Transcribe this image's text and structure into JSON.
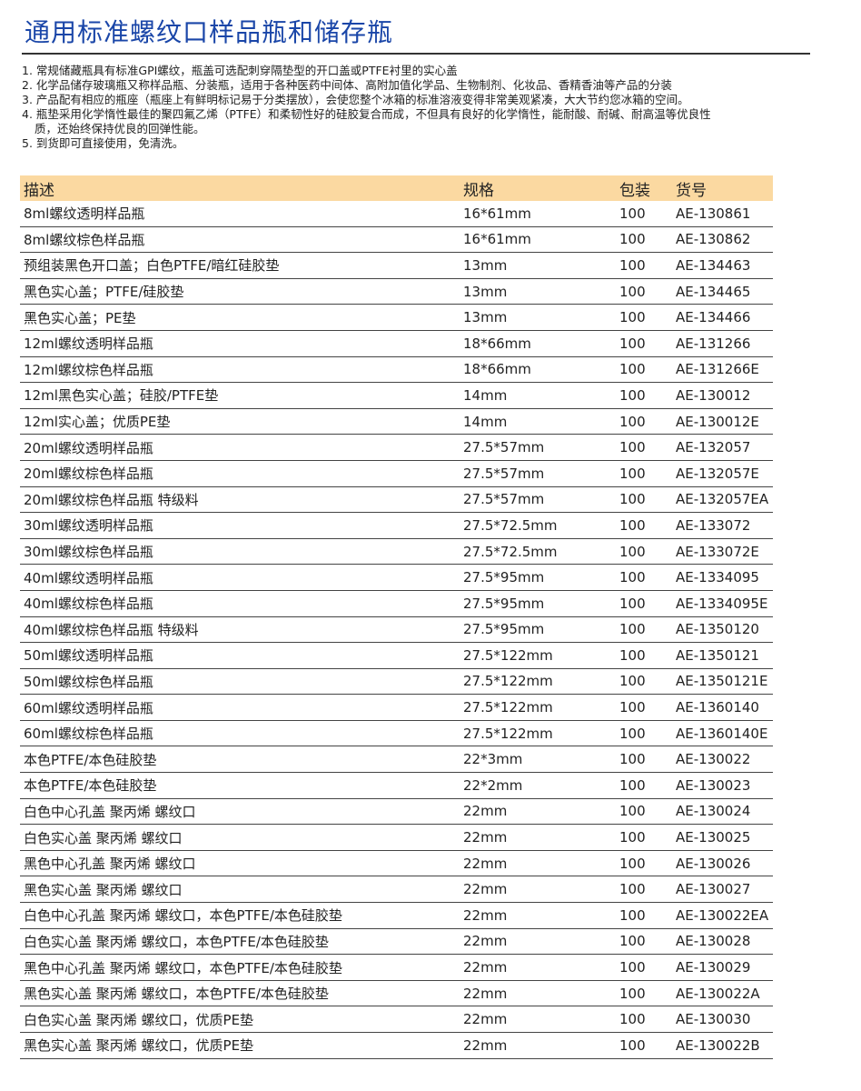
{
  "title": "通用标准螺纹口样品瓶和储存瓶",
  "notes": [
    "1. 常规储藏瓶具有标准GPI螺纹，瓶盖可选配刺穿隔垫型的开口盖或PTFE衬里的实心盖",
    "2. 化学品储存玻璃瓶又称样品瓶、分装瓶，适用于各种医药中间体、高附加值化学品、生物制剂、化妆品、香精香油等产品的分装",
    "3. 产品配有相应的瓶座（瓶座上有鲜明标记易于分类摆放），会使您整个冰箱的标准溶液变得非常美观紧凑，大大节约您冰箱的空间。",
    "4. 瓶垫采用化学惰性最佳的聚四氟乙烯（PTFE）和柔韧性好的硅胶复合而成，不但具有良好的化学惰性，能耐酸、耐碱、耐高温等优良性",
    "质，还始终保持优良的回弹性能。",
    "5. 到货即可直接使用，免清洗。"
  ],
  "table": {
    "headers": [
      "描述",
      "规格",
      "包装",
      "货号"
    ],
    "header_color": "#fbd9a1",
    "rows": [
      [
        "8ml螺纹透明样品瓶",
        "16*61mm",
        "100",
        "AE-130861"
      ],
      [
        "8ml螺纹棕色样品瓶",
        "16*61mm",
        "100",
        "AE-130862"
      ],
      [
        "预组装黑色开口盖；白色PTFE/暗红硅胶垫",
        "13mm",
        "100",
        "AE-134463"
      ],
      [
        "黑色实心盖；PTFE/硅胶垫",
        "13mm",
        "100",
        "AE-134465"
      ],
      [
        "黑色实心盖；PE垫",
        "13mm",
        "100",
        "AE-134466"
      ],
      [
        "12ml螺纹透明样品瓶",
        "18*66mm",
        "100",
        "AE-131266"
      ],
      [
        "12ml螺纹棕色样品瓶",
        "18*66mm",
        "100",
        "AE-131266E"
      ],
      [
        "12ml黑色实心盖；硅胶/PTFE垫",
        "14mm",
        "100",
        "AE-130012"
      ],
      [
        "12ml实心盖；优质PE垫",
        "14mm",
        "100",
        "AE-130012E"
      ],
      [
        "20ml螺纹透明样品瓶",
        "27.5*57mm",
        "100",
        "AE-132057"
      ],
      [
        "20ml螺纹棕色样品瓶",
        "27.5*57mm",
        "100",
        "AE-132057E"
      ],
      [
        "20ml螺纹棕色样品瓶 特级料",
        "27.5*57mm",
        "100",
        "AE-132057EA"
      ],
      [
        "30ml螺纹透明样品瓶",
        "27.5*72.5mm",
        "100",
        "AE-133072"
      ],
      [
        "30ml螺纹棕色样品瓶",
        "27.5*72.5mm",
        "100",
        "AE-133072E"
      ],
      [
        "40ml螺纹透明样品瓶",
        "27.5*95mm",
        "100",
        "AE-1334095"
      ],
      [
        "40ml螺纹棕色样品瓶",
        "27.5*95mm",
        "100",
        "AE-1334095E"
      ],
      [
        "40ml螺纹棕色样品瓶 特级料",
        "27.5*95mm",
        "100",
        "AE-1350120"
      ],
      [
        "50ml螺纹透明样品瓶",
        "27.5*122mm",
        "100",
        "AE-1350121"
      ],
      [
        "50ml螺纹棕色样品瓶",
        "27.5*122mm",
        "100",
        "AE-1350121E"
      ],
      [
        "60ml螺纹透明样品瓶",
        "27.5*122mm",
        "100",
        "AE-1360140"
      ],
      [
        "60ml螺纹棕色样品瓶",
        "27.5*122mm",
        "100",
        "AE-1360140E"
      ],
      [
        "本色PTFE/本色硅胶垫",
        "22*3mm",
        "100",
        "AE-130022"
      ],
      [
        "本色PTFE/本色硅胶垫",
        "22*2mm",
        "100",
        "AE-130023"
      ],
      [
        "白色中心孔盖 聚丙烯 螺纹口",
        "22mm",
        "100",
        "AE-130024"
      ],
      [
        "白色实心盖 聚丙烯 螺纹口",
        "22mm",
        "100",
        "AE-130025"
      ],
      [
        "黑色中心孔盖 聚丙烯 螺纹口",
        "22mm",
        "100",
        "AE-130026"
      ],
      [
        "黑色实心盖 聚丙烯 螺纹口",
        "22mm",
        "100",
        "AE-130027"
      ],
      [
        "白色中心孔盖 聚丙烯 螺纹口，本色PTFE/本色硅胶垫",
        "22mm",
        "100",
        "AE-130022EA"
      ],
      [
        "白色实心盖 聚丙烯 螺纹口，本色PTFE/本色硅胶垫",
        "22mm",
        "100",
        "AE-130028"
      ],
      [
        "黑色中心孔盖 聚丙烯 螺纹口，本色PTFE/本色硅胶垫",
        "22mm",
        "100",
        "AE-130029"
      ],
      [
        "黑色实心盖 聚丙烯 螺纹口，本色PTFE/本色硅胶垫",
        "22mm",
        "100",
        "AE-130022A"
      ],
      [
        "白色实心盖 聚丙烯 螺纹口，优质PE垫",
        "22mm",
        "100",
        "AE-130030"
      ],
      [
        "黑色实心盖 聚丙烯 螺纹口，优质PE垫",
        "22mm",
        "100",
        "AE-130022B"
      ]
    ]
  }
}
